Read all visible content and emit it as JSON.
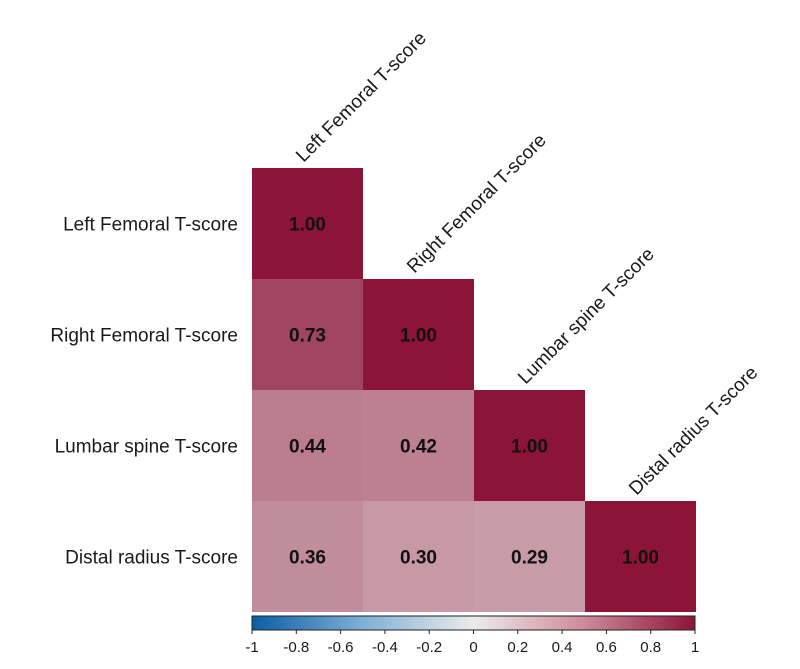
{
  "chart_data": {
    "type": "heatmap",
    "variables": [
      "Left Femoral T-score",
      "Right Femoral T-score",
      "Lumbar spine T-score",
      "Distal radius T-score"
    ],
    "matrix": [
      [
        1.0,
        null,
        null,
        null
      ],
      [
        0.73,
        1.0,
        null,
        null
      ],
      [
        0.44,
        0.42,
        1.0,
        null
      ],
      [
        0.36,
        0.3,
        0.29,
        1.0
      ]
    ],
    "value_labels": [
      [
        "1.00",
        null,
        null,
        null
      ],
      [
        "0.73",
        "1.00",
        null,
        null
      ],
      [
        "0.44",
        "0.42",
        "1.00",
        null
      ],
      [
        "0.36",
        "0.30",
        "0.29",
        "1.00"
      ]
    ],
    "triangle": "lower",
    "colorbar": {
      "range": [
        -1,
        1
      ],
      "ticks": [
        "-1",
        "-0.8",
        "-0.6",
        "-0.4",
        "-0.2",
        "0",
        "0.2",
        "0.4",
        "0.6",
        "0.8",
        "1"
      ],
      "low_color": "#0c5da5",
      "mid_color": "#ebebeb",
      "high_color": "#8c1438",
      "placement": "bottom"
    },
    "grid": false
  }
}
